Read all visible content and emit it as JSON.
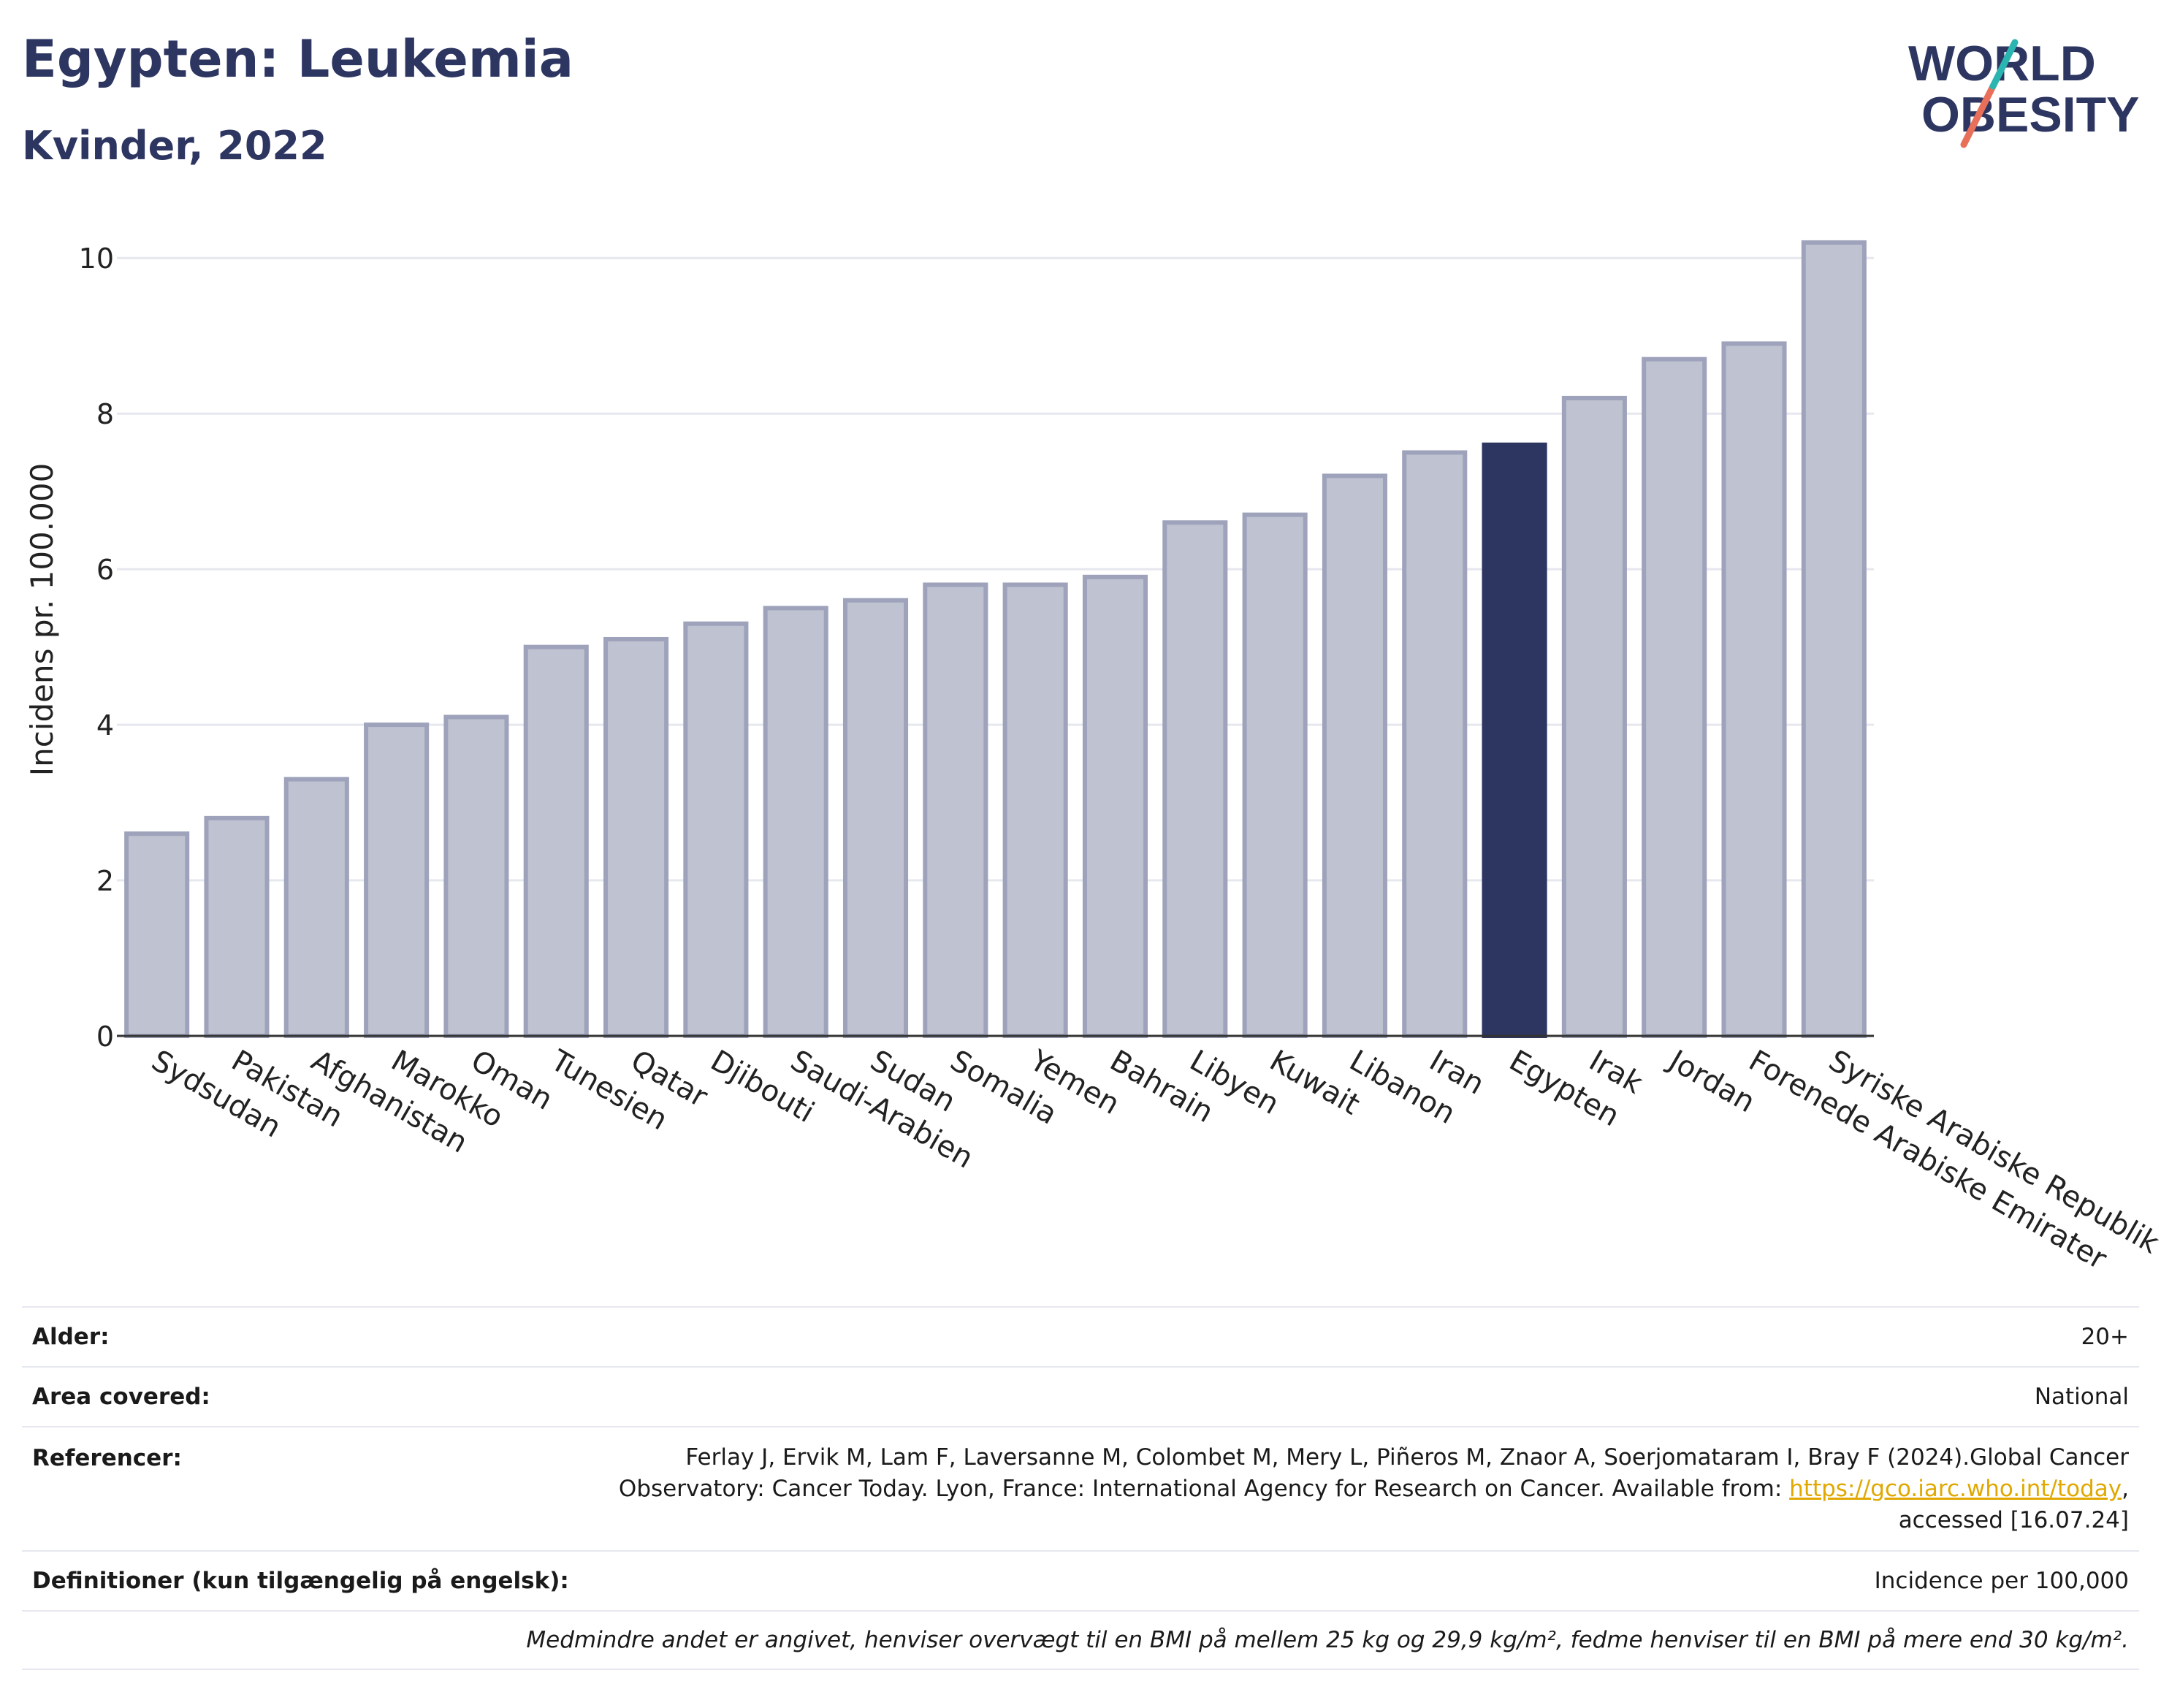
{
  "header": {
    "title": "Egypten: Leukemia",
    "subtitle": "Kvinder, 2022",
    "logo_line1": "WORLD",
    "logo_line2": "OBESITY"
  },
  "colors": {
    "highlight": "#2d3561",
    "bar_fill": "#bfc2d0",
    "bar_stroke": "#9ea3bb",
    "grid": "#e6e8ef",
    "logo_teal": "#2bb5b0",
    "logo_red": "#e8705a"
  },
  "chart_data": {
    "type": "bar",
    "ylabel": "Incidens pr. 100.000",
    "ylim": [
      0,
      10.5
    ],
    "yticks": [
      0,
      2,
      4,
      6,
      8,
      10
    ],
    "grid": true,
    "highlight": "Egypten",
    "categories": [
      "Sydsudan",
      "Pakistan",
      "Afghanistan",
      "Marokko",
      "Oman",
      "Tunesien",
      "Qatar",
      "Djibouti",
      "Saudi-Arabien",
      "Sudan",
      "Somalia",
      "Yemen",
      "Bahrain",
      "Libyen",
      "Kuwait",
      "Libanon",
      "Iran",
      "Egypten",
      "Irak",
      "Jordan",
      "Forenede Arabiske Emirater",
      "Syriske Arabiske Republik"
    ],
    "values": [
      2.6,
      2.8,
      3.3,
      4.0,
      4.1,
      5.0,
      5.1,
      5.3,
      5.5,
      5.6,
      5.8,
      5.8,
      5.9,
      6.6,
      6.7,
      7.2,
      7.5,
      7.6,
      8.2,
      8.7,
      8.9,
      10.2
    ]
  },
  "info": {
    "age_label": "Alder:",
    "age_value": "20+",
    "area_label": "Area covered:",
    "area_value": "National",
    "ref_label": "Referencer:",
    "ref_line1": "Ferlay J, Ervik M, Lam F, Laversanne M, Colombet M, Mery L, Piñeros M, Znaor A, Soerjomataram I, Bray F (2024).Global Cancer",
    "ref_line2": "Observatory: Cancer Today. Lyon, France: International Agency for Research on Cancer. Available from: ",
    "ref_link": "https://gco.iarc.who.int/today",
    "ref_line2_end": ",",
    "ref_line3": "accessed [16.07.24]",
    "def_label": "Definitioner (kun tilgængelig på engelsk):",
    "def_value": "Incidence per 100,000",
    "note": "Medmindre andet er angivet, henviser overvægt til en BMI på mellem 25 kg og 29,9 kg/m², fedme henviser til en BMI på mere end 30 kg/m²."
  }
}
